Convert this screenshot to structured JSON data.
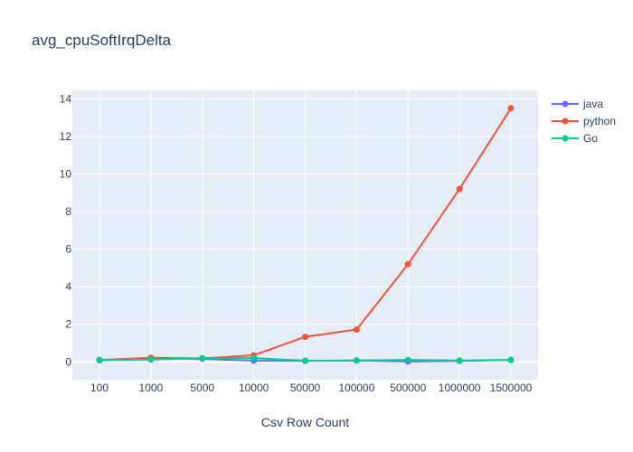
{
  "chart_data": {
    "type": "line",
    "title": "avg_cpuSoftIrqDelta",
    "xlabel": "Csv Row Count",
    "ylabel": "",
    "categories": [
      "100",
      "1000",
      "5000",
      "10000",
      "50000",
      "100000",
      "500000",
      "1000000",
      "1500000"
    ],
    "ylim": [
      -0.95,
      14.45
    ],
    "yticks": [
      0,
      2,
      4,
      6,
      8,
      10,
      12,
      14
    ],
    "grid": true,
    "legend_position": "top-right",
    "series": [
      {
        "name": "java",
        "color": "#636efa",
        "values": [
          0.08,
          0.18,
          0.16,
          0.06,
          0.05,
          0.07,
          0.02,
          0.05,
          0.1
        ]
      },
      {
        "name": "python",
        "color": "#ef553b",
        "values": [
          0.1,
          0.22,
          0.18,
          0.35,
          1.33,
          1.72,
          5.2,
          9.2,
          13.5
        ]
      },
      {
        "name": "Go",
        "color": "#00cc96",
        "values": [
          0.1,
          0.12,
          0.2,
          0.2,
          0.06,
          0.07,
          0.1,
          0.07,
          0.1
        ]
      }
    ]
  }
}
